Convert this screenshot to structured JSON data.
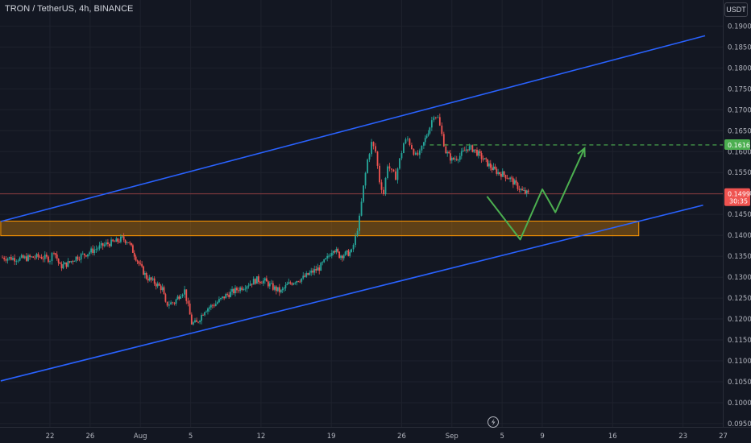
{
  "header": {
    "symbol_title": "TRON / TetherUS, 4h, BINANCE",
    "currency_label": "USDT"
  },
  "icons": {
    "lightning": "lightning-icon"
  },
  "colors": {
    "background": "#131722",
    "up": "#26a69a",
    "down": "#ef5350",
    "channel": "#2962ff",
    "support_zone": "#ff9800",
    "projection": "#4caf50",
    "target_line": "#4caf50",
    "grid": "#1e222d",
    "axis_text": "#b2b5be"
  },
  "chart_data": {
    "type": "candlestick",
    "symbol": "TRON / TetherUS",
    "interval": "4h",
    "exchange": "BINANCE",
    "y_axis": {
      "range": [
        0.0925,
        0.195
      ],
      "ticks": [
        "0.1900",
        "0.1850",
        "0.1800",
        "0.1750",
        "0.1700",
        "0.1650",
        "0.1600",
        "0.1550",
        "0.1500",
        "0.1450",
        "0.1400",
        "0.1350",
        "0.1300",
        "0.1250",
        "0.1200",
        "0.1150",
        "0.1100",
        "0.1050",
        "0.1000",
        "0.0950"
      ]
    },
    "x_axis": {
      "ticks": [
        "22",
        "26",
        "Aug",
        "5",
        "12",
        "19",
        "26",
        "Sep",
        "5",
        "9",
        "16",
        "23",
        "27"
      ],
      "tick_positions_days": [
        0,
        4,
        9,
        14,
        21,
        28,
        35,
        40,
        45,
        49,
        56,
        63,
        67
      ]
    },
    "price_badges": [
      {
        "price": 0.1616,
        "label": "0.1616",
        "kind": "target"
      },
      {
        "price": 0.1499,
        "label": "0.1499",
        "sublabel": "30:35",
        "kind": "last"
      }
    ],
    "channel_upper": {
      "from": {
        "day": -4.9,
        "price": 0.1433
      },
      "to": {
        "day": 65.2,
        "price": 0.1877
      }
    },
    "channel_lower": {
      "from": {
        "day": -4.9,
        "price": 0.1052
      },
      "to": {
        "day": 65.0,
        "price": 0.1472
      }
    },
    "support_zone": {
      "from_day": -4.9,
      "to_day": 58.6,
      "price_top": 0.1434,
      "price_bottom": 0.1399
    },
    "target_line": {
      "price": 0.1616,
      "from_day": 37.8
    },
    "projection_path": [
      {
        "day": 43.5,
        "price": 0.1493
      },
      {
        "day": 46.8,
        "price": 0.139
      },
      {
        "day": 49.0,
        "price": 0.151
      },
      {
        "day": 50.3,
        "price": 0.1455
      },
      {
        "day": 53.2,
        "price": 0.1608
      }
    ],
    "price_path": [
      [
        -4.9,
        0.1347
      ],
      [
        -3.0,
        0.1344
      ],
      [
        -1.0,
        0.1349
      ],
      [
        0.0,
        0.1343
      ],
      [
        0.4,
        0.1365
      ],
      [
        1.0,
        0.1325
      ],
      [
        1.8,
        0.1333
      ],
      [
        2.6,
        0.1347
      ],
      [
        3.6,
        0.1356
      ],
      [
        4.6,
        0.1368
      ],
      [
        5.6,
        0.1379
      ],
      [
        6.6,
        0.1385
      ],
      [
        7.2,
        0.1392
      ],
      [
        7.8,
        0.1385
      ],
      [
        8.4,
        0.1355
      ],
      [
        9.0,
        0.1325
      ],
      [
        9.6,
        0.13
      ],
      [
        10.4,
        0.1287
      ],
      [
        11.2,
        0.1272
      ],
      [
        11.5,
        0.1235
      ],
      [
        12.4,
        0.124
      ],
      [
        13.0,
        0.1262
      ],
      [
        13.4,
        0.1268
      ],
      [
        14.1,
        0.119
      ],
      [
        14.6,
        0.119
      ],
      [
        15.4,
        0.1222
      ],
      [
        16.5,
        0.1237
      ],
      [
        17.5,
        0.1256
      ],
      [
        18.6,
        0.127
      ],
      [
        19.6,
        0.1282
      ],
      [
        20.6,
        0.1294
      ],
      [
        21.4,
        0.129
      ],
      [
        22.2,
        0.1275
      ],
      [
        23.0,
        0.1265
      ],
      [
        23.6,
        0.1281
      ],
      [
        24.4,
        0.1292
      ],
      [
        25.2,
        0.1298
      ],
      [
        26.0,
        0.1311
      ],
      [
        26.8,
        0.1322
      ],
      [
        27.6,
        0.1345
      ],
      [
        28.2,
        0.137
      ],
      [
        28.8,
        0.1352
      ],
      [
        29.4,
        0.1355
      ],
      [
        30.0,
        0.136
      ],
      [
        30.4,
        0.1394
      ],
      [
        30.8,
        0.144
      ],
      [
        31.2,
        0.1515
      ],
      [
        31.6,
        0.158
      ],
      [
        32.0,
        0.162
      ],
      [
        32.4,
        0.16
      ],
      [
        32.8,
        0.153
      ],
      [
        33.2,
        0.15
      ],
      [
        33.6,
        0.157
      ],
      [
        34.0,
        0.155
      ],
      [
        34.4,
        0.154
      ],
      [
        34.8,
        0.158
      ],
      [
        35.2,
        0.162
      ],
      [
        35.6,
        0.163
      ],
      [
        36.0,
        0.161
      ],
      [
        36.4,
        0.159
      ],
      [
        36.8,
        0.1595
      ],
      [
        37.2,
        0.162
      ],
      [
        37.8,
        0.166
      ],
      [
        38.2,
        0.169
      ],
      [
        38.6,
        0.168
      ],
      [
        39.0,
        0.164
      ],
      [
        39.4,
        0.16
      ],
      [
        40.0,
        0.158
      ],
      [
        40.8,
        0.159
      ],
      [
        41.6,
        0.161
      ],
      [
        42.2,
        0.1605
      ],
      [
        42.8,
        0.159
      ],
      [
        43.4,
        0.1575
      ],
      [
        44.0,
        0.156
      ],
      [
        44.6,
        0.155
      ],
      [
        45.2,
        0.1545
      ],
      [
        45.8,
        0.1535
      ],
      [
        46.4,
        0.152
      ],
      [
        47.0,
        0.1505
      ],
      [
        47.6,
        0.1499
      ]
    ]
  }
}
